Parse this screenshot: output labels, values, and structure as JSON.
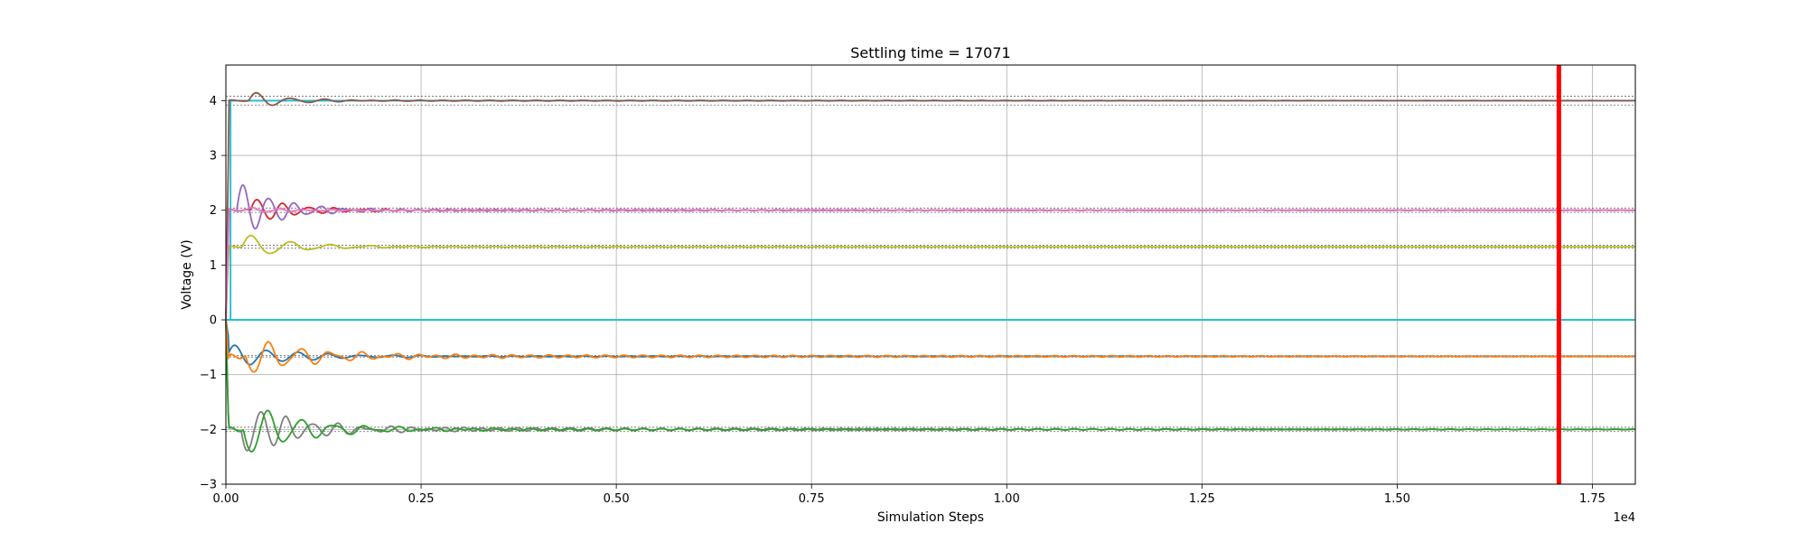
{
  "chart_data": {
    "type": "line",
    "title": "Settling time = 17071",
    "xlabel": "Simulation Steps",
    "ylabel": "Voltage (V)",
    "x_offset_label": "1e4",
    "xlim": [
      0,
      18050
    ],
    "ylim": [
      -3,
      4.65
    ],
    "xticks": [
      0,
      2500,
      5000,
      7500,
      10000,
      12500,
      15000,
      17500
    ],
    "xtick_labels": [
      "0.00",
      "0.25",
      "0.50",
      "0.75",
      "1.00",
      "1.25",
      "1.50",
      "1.75"
    ],
    "yticks": [
      -3,
      -2,
      -1,
      0,
      1,
      2,
      3,
      4
    ],
    "ytick_labels": [
      "−3",
      "−2",
      "−1",
      "0",
      "1",
      "2",
      "3",
      "4"
    ],
    "grid": true,
    "settling_marker": {
      "x": 17071,
      "color": "#ff0000"
    },
    "tolerance_bands": [
      {
        "center": 4.0,
        "half_width": 0.08
      },
      {
        "center": 2.0,
        "half_width": 0.04
      },
      {
        "center": 1.333,
        "half_width": 0.027
      },
      {
        "center": 0.0,
        "half_width": 0.0
      },
      {
        "center": -0.667,
        "half_width": 0.013
      },
      {
        "center": -2.0,
        "half_width": 0.04
      }
    ],
    "series": [
      {
        "color": "#17becf",
        "type": "step",
        "start": 0,
        "final": 4.0,
        "step_at": 60
      },
      {
        "color": "#8c564b",
        "start": 0,
        "final": 4.0,
        "peak": 4.3,
        "t_peak": 400,
        "amp": 0.27,
        "period": 430,
        "decay": 450,
        "osc_amp": 0.01,
        "osc_period": 300
      },
      {
        "color": "#d62728",
        "start": 0,
        "final": 2.0,
        "peak": 2.4,
        "t_peak": 400,
        "amp": 0.4,
        "period": 330,
        "decay": 550,
        "osc_amp": 0.015,
        "osc_period": 220
      },
      {
        "color": "#9467bd",
        "start": 0,
        "final": 2.0,
        "peak": 2.65,
        "t_peak": 220,
        "amp": 0.65,
        "period": 330,
        "decay": 500,
        "osc_amp": 0.02,
        "osc_period": 200
      },
      {
        "color": "#bcbd22",
        "start": 0,
        "final": 1.333,
        "peak": 1.65,
        "t_peak": 330,
        "amp": 0.4,
        "period": 500,
        "decay": 600,
        "osc_amp": 0.01,
        "osc_period": 260
      },
      {
        "color": "#e377c2",
        "start": 0,
        "final": 2.0,
        "peak": 2.1,
        "t_peak": 350,
        "amp": 0.1,
        "period": 330,
        "decay": 500,
        "osc_amp": 0.01,
        "osc_period": 220
      },
      {
        "color": "#7f7f7f",
        "start": 0,
        "final": -2.0,
        "peak": -2.6,
        "t_peak": 280,
        "amp": 0.55,
        "period": 330,
        "decay": 700,
        "osc_amp": 0.04,
        "osc_period": 230
      },
      {
        "color": "#2ca02c",
        "start": 0,
        "final": -2.0,
        "peak": -2.65,
        "t_peak": 330,
        "amp": 0.6,
        "period": 420,
        "decay": 700,
        "osc_amp": 0.03,
        "osc_period": 240
      },
      {
        "color": "#1f77b4",
        "start": 0,
        "final": -0.667,
        "peak": -0.45,
        "t_peak": 120,
        "amp": 0.2,
        "period": 400,
        "decay": 800,
        "osc_amp": 0.01,
        "osc_period": 300
      },
      {
        "color": "#ff7f0e",
        "start": 0,
        "final": -0.667,
        "peak": -1.1,
        "t_peak": 350,
        "amp": 0.45,
        "period": 400,
        "decay": 800,
        "osc_amp": 0.04,
        "osc_period": 240
      },
      {
        "color": "#17becf",
        "type": "flat",
        "start": 0,
        "final": 0.0
      }
    ]
  }
}
